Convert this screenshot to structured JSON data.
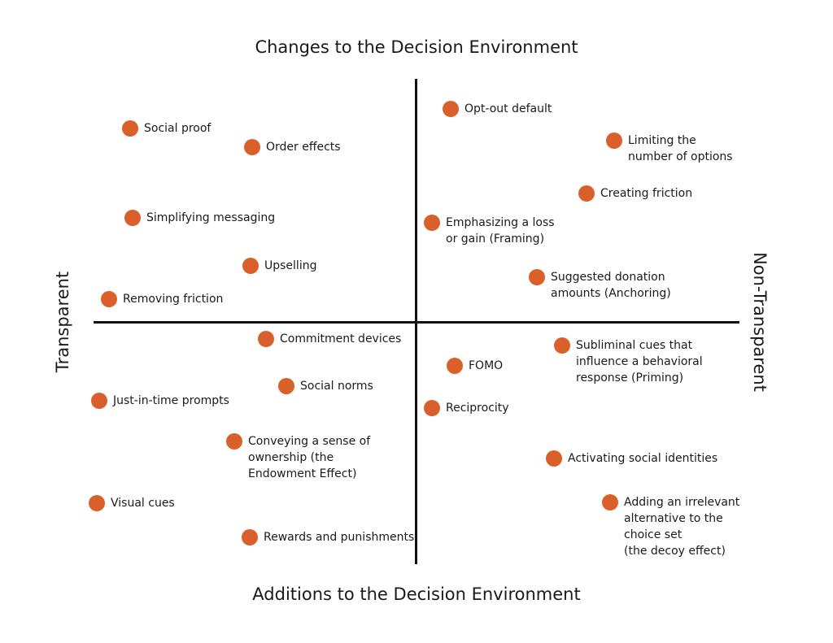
{
  "axes": {
    "top": "Changes to the Decision Environment",
    "bottom": "Additions to the Decision Environment",
    "left": "Transparent",
    "right": "Non-Transparent"
  },
  "colors": {
    "marker": "#d9602a",
    "axis": "#111111"
  },
  "items": [
    {
      "label": "Opt-out default"
    },
    {
      "label": "Social proof"
    },
    {
      "label": "Order effects"
    },
    {
      "label": "Limiting the\nnumber of options"
    },
    {
      "label": "Creating friction"
    },
    {
      "label": "Simplifying messaging"
    },
    {
      "label": "Emphasizing a loss\nor gain (Framing)"
    },
    {
      "label": "Upselling"
    },
    {
      "label": "Suggested donation\namounts (Anchoring)"
    },
    {
      "label": "Removing friction"
    },
    {
      "label": "Commitment devices"
    },
    {
      "label": "Subliminal cues that\ninfluence a behavioral\nresponse (Priming)"
    },
    {
      "label": "FOMO"
    },
    {
      "label": "Social norms"
    },
    {
      "label": "Just-in-time prompts"
    },
    {
      "label": "Reciprocity"
    },
    {
      "label": "Conveying a sense of\nownership (the\nEndowment Effect)"
    },
    {
      "label": "Activating social identities"
    },
    {
      "label": "Visual cues"
    },
    {
      "label": "Adding an irrelevant\nalternative to the\nchoice set\n(the decoy effect)"
    },
    {
      "label": "Rewards and punishments"
    }
  ]
}
